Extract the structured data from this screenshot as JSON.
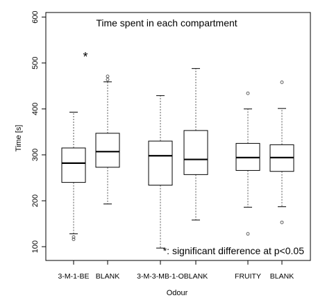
{
  "chart_data": {
    "type": "box",
    "title": "Time spent in each compartment",
    "xlabel": "Odour",
    "ylabel": "Time [s]",
    "ylim": [
      70,
      610
    ],
    "yticks": [
      100,
      200,
      300,
      400,
      500,
      600
    ],
    "annotation": "*: significant difference at p<0.05",
    "significance_marker": "*",
    "significance_category_index": 0,
    "categories": [
      "3-M-1-BE",
      "BLANK",
      "3-M-3-MB-1-O",
      "BLANK",
      "FRUITY",
      "BLANK"
    ],
    "boxes": [
      {
        "label": "3-M-1-BE",
        "whisker_low": 128,
        "q1": 240,
        "median": 282,
        "q3": 315,
        "whisker_high": 393,
        "outliers": [
          116,
          121
        ]
      },
      {
        "label": "BLANK",
        "whisker_low": 193,
        "q1": 273,
        "median": 307,
        "q3": 347,
        "whisker_high": 459,
        "outliers": [
          464,
          471
        ]
      },
      {
        "label": "3-M-3-MB-1-O",
        "whisker_low": 97,
        "q1": 234,
        "median": 298,
        "q3": 330,
        "whisker_high": 429,
        "outliers": []
      },
      {
        "label": "BLANK",
        "whisker_low": 158,
        "q1": 257,
        "median": 290,
        "q3": 353,
        "whisker_high": 488,
        "outliers": []
      },
      {
        "label": "FRUITY",
        "whisker_low": 186,
        "q1": 266,
        "median": 294,
        "q3": 325,
        "whisker_high": 400,
        "outliers": [
          128,
          434
        ]
      },
      {
        "label": "BLANK",
        "whisker_low": 187,
        "q1": 264,
        "median": 294,
        "q3": 322,
        "whisker_high": 401,
        "outliers": [
          153,
          458
        ]
      }
    ],
    "colors": {
      "box": "#000000",
      "median": "#000000",
      "whisker": "#555555"
    }
  }
}
